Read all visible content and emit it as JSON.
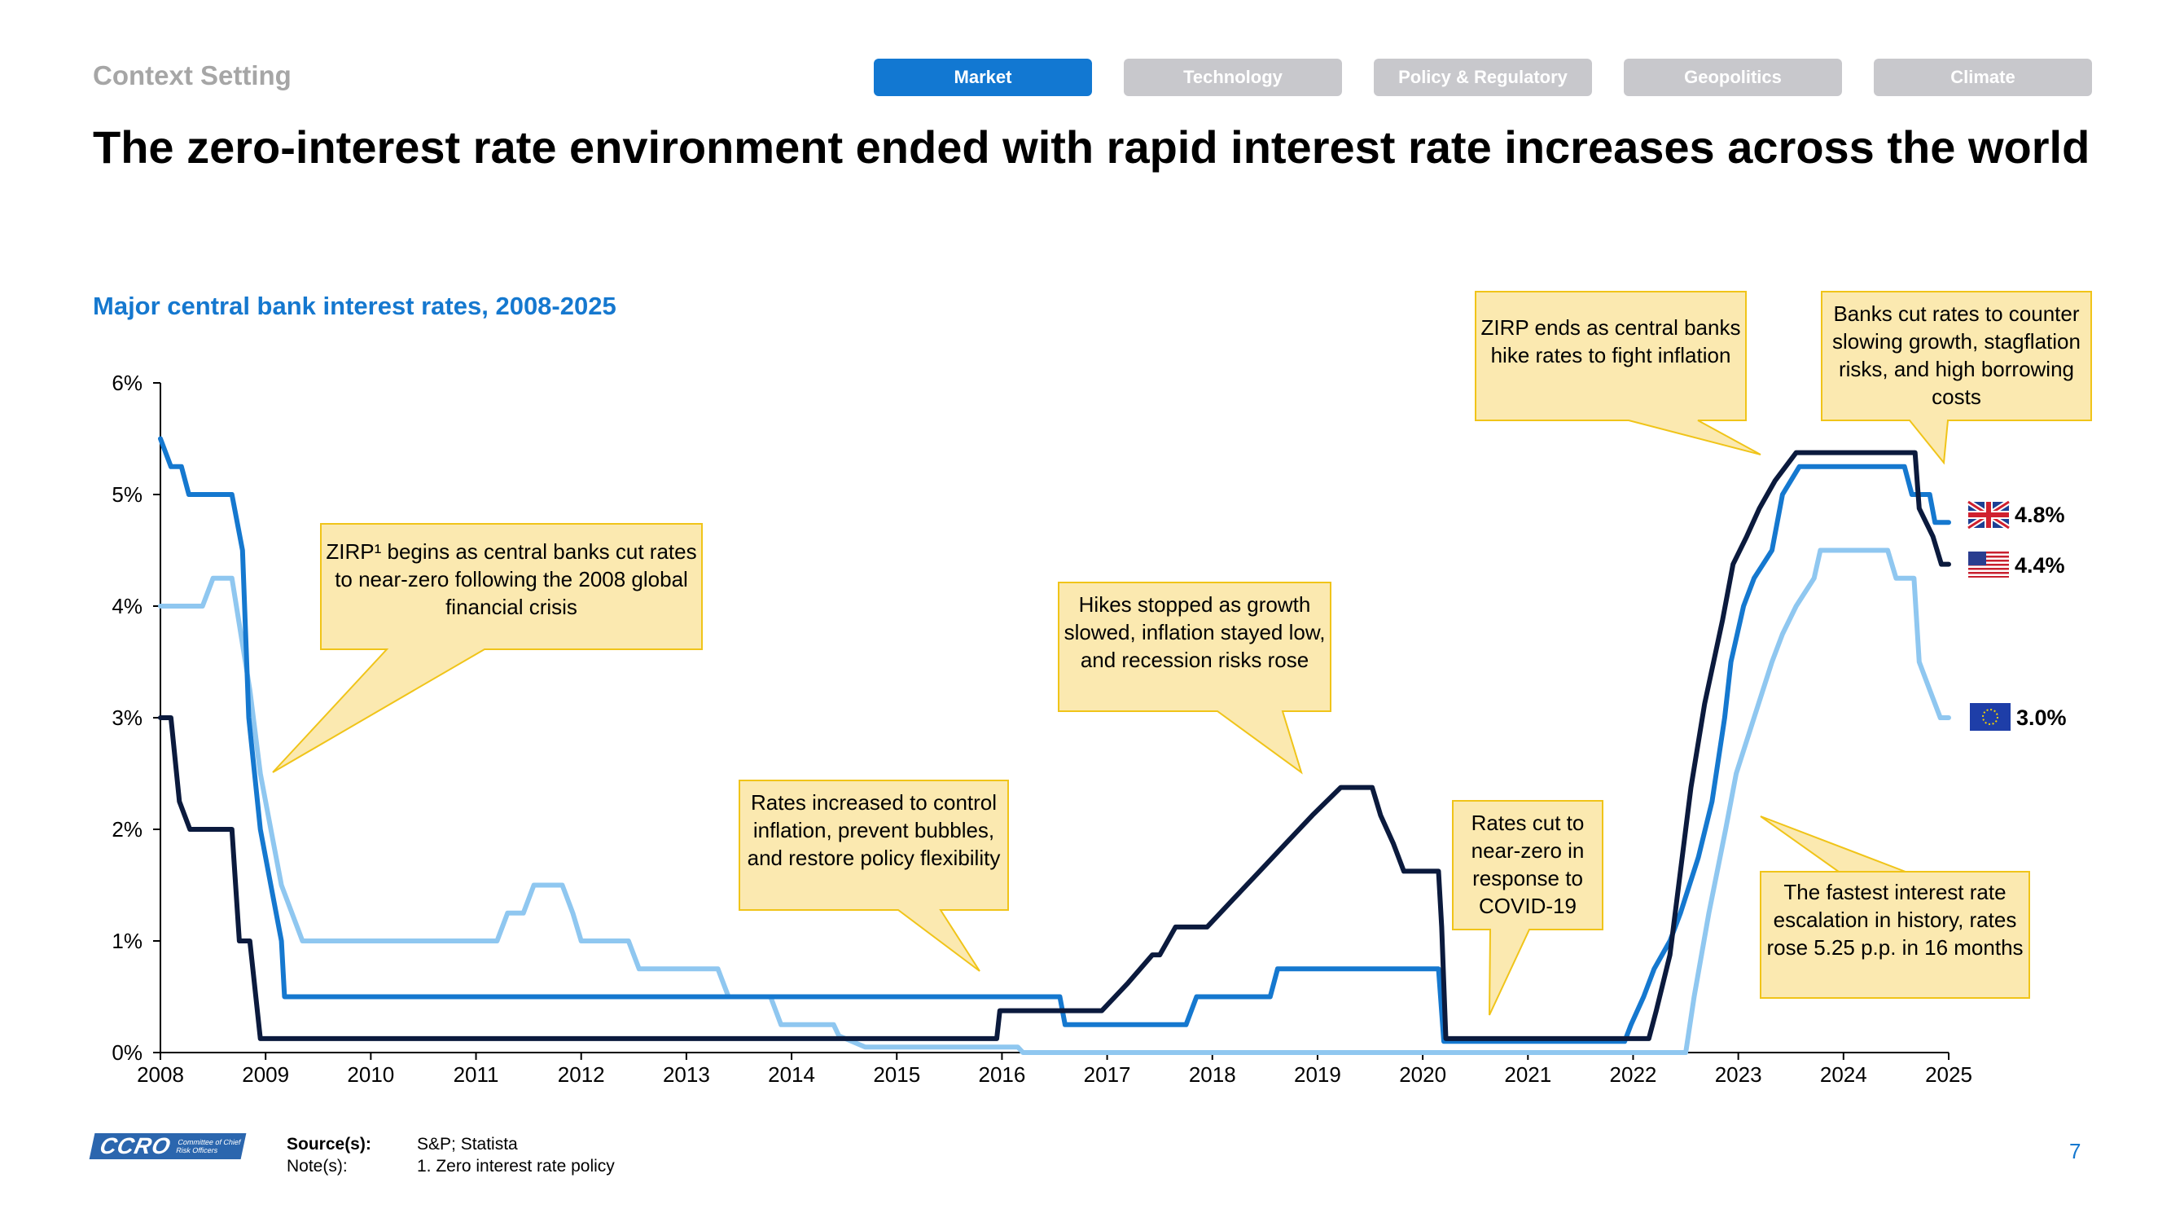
{
  "section_label": "Context Setting",
  "tabs": [
    {
      "label": "Market",
      "active": true
    },
    {
      "label": "Technology",
      "active": false
    },
    {
      "label": "Policy & Regulatory",
      "active": false
    },
    {
      "label": "Geopolitics",
      "active": false
    },
    {
      "label": "Climate",
      "active": false
    }
  ],
  "headline": "The zero-interest rate environment ended with rapid interest rate increases across the world",
  "chart_title": "Major central bank interest rates, 2008-2025",
  "colors": {
    "uk": "#1578cf",
    "us": "#0b1a3d",
    "eu": "#8fc7f0",
    "callout_fill": "#fbe9b0",
    "callout_border": "#f0c419",
    "tab_active": "#1278d2",
    "tab_inactive": "#c8c8cc"
  },
  "chart_data": {
    "type": "line",
    "title": "Major central bank interest rates, 2008-2025",
    "xlim": [
      2008,
      2025
    ],
    "ylim": [
      0,
      6
    ],
    "x_ticks": [
      "2008",
      "2009",
      "2010",
      "2011",
      "2012",
      "2013",
      "2014",
      "2015",
      "2016",
      "2017",
      "2018",
      "2019",
      "2020",
      "2021",
      "2022",
      "2023",
      "2024",
      "2025"
    ],
    "y_ticks": [
      "0%",
      "1%",
      "2%",
      "3%",
      "4%",
      "5%",
      "6%"
    ],
    "grid": false,
    "series": [
      {
        "key": "uk",
        "end_label": "4.8%",
        "flag": "uk-flag-icon",
        "points": [
          [
            2008.0,
            5.5
          ],
          [
            2008.1,
            5.25
          ],
          [
            2008.2,
            5.25
          ],
          [
            2008.27,
            5.0
          ],
          [
            2008.68,
            5.0
          ],
          [
            2008.78,
            4.5
          ],
          [
            2008.84,
            3.0
          ],
          [
            2008.95,
            2.0
          ],
          [
            2009.05,
            1.5
          ],
          [
            2009.15,
            1.0
          ],
          [
            2009.18,
            0.5
          ],
          [
            2016.55,
            0.5
          ],
          [
            2016.6,
            0.25
          ],
          [
            2017.75,
            0.25
          ],
          [
            2017.85,
            0.5
          ],
          [
            2018.55,
            0.5
          ],
          [
            2018.62,
            0.75
          ],
          [
            2020.15,
            0.75
          ],
          [
            2020.2,
            0.1
          ],
          [
            2021.92,
            0.1
          ],
          [
            2021.98,
            0.25
          ],
          [
            2022.1,
            0.5
          ],
          [
            2022.2,
            0.75
          ],
          [
            2022.35,
            1.0
          ],
          [
            2022.45,
            1.25
          ],
          [
            2022.62,
            1.75
          ],
          [
            2022.75,
            2.25
          ],
          [
            2022.87,
            3.0
          ],
          [
            2022.93,
            3.5
          ],
          [
            2023.05,
            4.0
          ],
          [
            2023.15,
            4.25
          ],
          [
            2023.32,
            4.5
          ],
          [
            2023.42,
            5.0
          ],
          [
            2023.58,
            5.25
          ],
          [
            2024.58,
            5.25
          ],
          [
            2024.65,
            5.0
          ],
          [
            2024.82,
            5.0
          ],
          [
            2024.87,
            4.75
          ],
          [
            2025.0,
            4.75
          ]
        ]
      },
      {
        "key": "us",
        "end_label": "4.4%",
        "flag": "us-flag-icon",
        "points": [
          [
            2008.0,
            3.0
          ],
          [
            2008.1,
            3.0
          ],
          [
            2008.18,
            2.25
          ],
          [
            2008.28,
            2.0
          ],
          [
            2008.68,
            2.0
          ],
          [
            2008.75,
            1.0
          ],
          [
            2008.85,
            1.0
          ],
          [
            2008.95,
            0.125
          ],
          [
            2015.95,
            0.125
          ],
          [
            2015.98,
            0.375
          ],
          [
            2016.95,
            0.375
          ],
          [
            2017.2,
            0.625
          ],
          [
            2017.43,
            0.875
          ],
          [
            2017.5,
            0.875
          ],
          [
            2017.65,
            1.125
          ],
          [
            2017.95,
            1.125
          ],
          [
            2018.2,
            1.375
          ],
          [
            2018.45,
            1.625
          ],
          [
            2018.7,
            1.875
          ],
          [
            2018.95,
            2.125
          ],
          [
            2019.22,
            2.375
          ],
          [
            2019.52,
            2.375
          ],
          [
            2019.6,
            2.125
          ],
          [
            2019.72,
            1.875
          ],
          [
            2019.82,
            1.625
          ],
          [
            2020.15,
            1.625
          ],
          [
            2020.18,
            1.125
          ],
          [
            2020.22,
            0.125
          ],
          [
            2022.15,
            0.125
          ],
          [
            2022.22,
            0.375
          ],
          [
            2022.35,
            0.875
          ],
          [
            2022.45,
            1.625
          ],
          [
            2022.55,
            2.375
          ],
          [
            2022.68,
            3.125
          ],
          [
            2022.85,
            3.875
          ],
          [
            2022.95,
            4.375
          ],
          [
            2023.08,
            4.625
          ],
          [
            2023.2,
            4.875
          ],
          [
            2023.35,
            5.125
          ],
          [
            2023.55,
            5.375
          ],
          [
            2024.68,
            5.375
          ],
          [
            2024.72,
            4.875
          ],
          [
            2024.85,
            4.625
          ],
          [
            2024.93,
            4.375
          ],
          [
            2025.0,
            4.375
          ]
        ]
      },
      {
        "key": "eu",
        "end_label": "3.0%",
        "flag": "eu-flag-icon",
        "points": [
          [
            2008.0,
            4.0
          ],
          [
            2008.4,
            4.0
          ],
          [
            2008.5,
            4.25
          ],
          [
            2008.68,
            4.25
          ],
          [
            2008.85,
            3.25
          ],
          [
            2008.95,
            2.5
          ],
          [
            2009.05,
            2.0
          ],
          [
            2009.15,
            1.5
          ],
          [
            2009.35,
            1.0
          ],
          [
            2011.2,
            1.0
          ],
          [
            2011.3,
            1.25
          ],
          [
            2011.45,
            1.25
          ],
          [
            2011.55,
            1.5
          ],
          [
            2011.82,
            1.5
          ],
          [
            2011.92,
            1.25
          ],
          [
            2012.0,
            1.0
          ],
          [
            2012.45,
            1.0
          ],
          [
            2012.55,
            0.75
          ],
          [
            2013.3,
            0.75
          ],
          [
            2013.4,
            0.5
          ],
          [
            2013.8,
            0.5
          ],
          [
            2013.9,
            0.25
          ],
          [
            2014.4,
            0.25
          ],
          [
            2014.45,
            0.15
          ],
          [
            2014.7,
            0.05
          ],
          [
            2016.15,
            0.05
          ],
          [
            2016.2,
            0.0
          ],
          [
            2022.5,
            0.0
          ],
          [
            2022.58,
            0.5
          ],
          [
            2022.72,
            1.25
          ],
          [
            2022.88,
            2.0
          ],
          [
            2022.98,
            2.5
          ],
          [
            2023.15,
            3.0
          ],
          [
            2023.32,
            3.5
          ],
          [
            2023.42,
            3.75
          ],
          [
            2023.55,
            4.0
          ],
          [
            2023.72,
            4.25
          ],
          [
            2023.78,
            4.5
          ],
          [
            2024.42,
            4.5
          ],
          [
            2024.5,
            4.25
          ],
          [
            2024.67,
            4.25
          ],
          [
            2024.72,
            3.5
          ],
          [
            2024.82,
            3.25
          ],
          [
            2024.92,
            3.0
          ],
          [
            2025.0,
            3.0
          ]
        ]
      }
    ],
    "annotations": [
      {
        "id": "zirp-begins",
        "text": "ZIRP¹ begins as central banks cut rates to near-zero following the 2008 global financial crisis"
      },
      {
        "id": "rates-increased",
        "text": "Rates increased to control inflation, prevent bubbles, and restore policy flexibility"
      },
      {
        "id": "hikes-stopped",
        "text": "Hikes stopped as growth slowed, inflation stayed low, and recession risks rose"
      },
      {
        "id": "rates-cut-covid",
        "text": "Rates cut to near-zero in response to COVID-19"
      },
      {
        "id": "zirp-ends",
        "text": "ZIRP ends as central banks hike rates to fight inflation"
      },
      {
        "id": "banks-cut",
        "text": "Banks cut rates to counter slowing growth, stagflation risks, and high borrowing costs"
      },
      {
        "id": "fastest-escalation",
        "text": "The fastest interest rate escalation in history, rates rose 5.25 p.p. in 16 months"
      }
    ]
  },
  "footer": {
    "source_label": "Source(s):",
    "source_text": "S&P; Statista",
    "note_label": "Note(s):",
    "note_text": "1. Zero interest rate policy",
    "logo_text": "CCRO",
    "logo_subtext": "Committee of Chief Risk Officers",
    "page_number": "7"
  }
}
